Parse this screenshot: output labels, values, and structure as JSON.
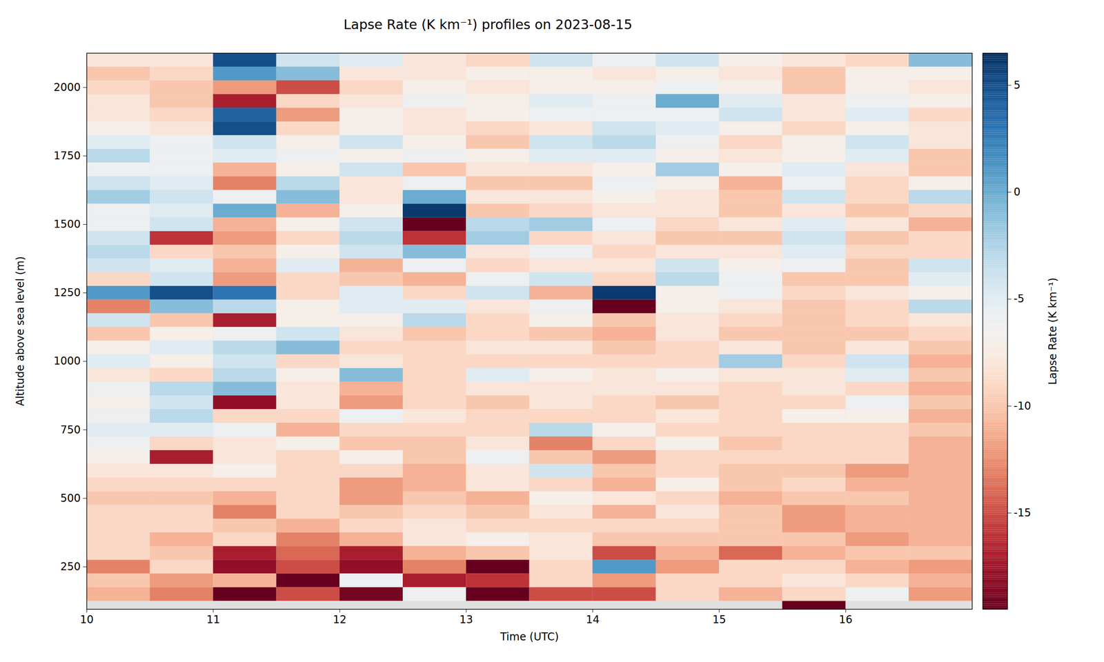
{
  "chart_data": {
    "type": "heatmap",
    "title": "Lapse Rate (K km⁻¹) profiles on 2023-08-15",
    "x_label": "Time (UTC)",
    "y_label": "Altitude above sea level (m)",
    "xlim": [
      10,
      17
    ],
    "xticks": [
      10,
      11,
      12,
      13,
      14,
      15,
      16
    ],
    "ylim": [
      95,
      2125
    ],
    "yticks": [
      250,
      500,
      750,
      1000,
      1250,
      1500,
      1750,
      2000
    ],
    "x_edges": [
      10,
      10.5,
      11,
      11.5,
      12,
      12.5,
      13,
      13.5,
      14,
      14.5,
      15,
      15.5,
      16,
      16.5,
      17
    ],
    "y_edges": [
      95,
      125,
      175,
      225,
      275,
      325,
      375,
      425,
      475,
      525,
      575,
      625,
      675,
      725,
      775,
      825,
      875,
      925,
      975,
      1025,
      1075,
      1125,
      1175,
      1225,
      1275,
      1325,
      1375,
      1425,
      1475,
      1525,
      1575,
      1625,
      1675,
      1725,
      1775,
      1825,
      1875,
      1925,
      1975,
      2025,
      2075,
      2125
    ],
    "values": [
      [
        null,
        -11,
        -10,
        -13,
        -9,
        -9,
        -9,
        -9,
        -10,
        -9,
        -8,
        -7,
        -6,
        -5,
        -6,
        -7,
        -6,
        -8,
        -5,
        -7,
        -10,
        -4,
        -13,
        1,
        -9,
        -4,
        -3,
        -4,
        -6,
        -6,
        -2,
        -4,
        -6,
        -3,
        -5,
        -7,
        -8,
        -8,
        -9,
        -10,
        -8
      ],
      [
        null,
        -13,
        -12,
        -9,
        -10,
        -11,
        -9,
        -9,
        -10,
        -9,
        -8,
        -17,
        -9,
        -5,
        -3,
        -4,
        -3,
        -9,
        -7,
        -5,
        -7,
        -10,
        -1,
        5,
        -4,
        -5,
        -9,
        -16,
        -4,
        -5,
        -4,
        -5,
        -6,
        -6,
        -6,
        -8,
        -9,
        -10,
        -10,
        -9,
        -8
      ],
      [
        null,
        -19.5,
        -11,
        -18,
        -17,
        -9,
        -10,
        -13,
        -11,
        -9,
        -7,
        -8,
        -8,
        -6,
        -9,
        -18,
        -1,
        -3,
        -4,
        -3,
        -6,
        -17,
        -3,
        3,
        -12,
        -11,
        -10,
        -12,
        -11,
        0,
        -6,
        -13,
        -11,
        -5,
        -4,
        5,
        4,
        -17,
        -12,
        1,
        5
      ],
      [
        null,
        -15,
        -19.5,
        -15,
        -14,
        -13,
        -11,
        -9,
        -9,
        -9,
        -9,
        -9,
        -7,
        -11,
        -9,
        -8,
        -8,
        -7,
        -9,
        -1,
        -4,
        -7,
        -7,
        -9,
        -9,
        -5,
        -7,
        -9,
        -7,
        -11,
        -1,
        -3,
        -7,
        -6,
        -7,
        -9,
        -12,
        -9,
        -15,
        -1,
        -4
      ],
      [
        null,
        -19,
        -6,
        -18,
        -17,
        -11,
        -9,
        -10,
        -12,
        -12,
        -9,
        -7,
        -10,
        -9,
        -6,
        -12,
        -11,
        -1,
        -8,
        -9,
        -8,
        -7,
        -5,
        -5,
        -10,
        -11,
        -4,
        -3,
        -4,
        -7,
        -8,
        -8,
        -4,
        -7,
        -4,
        -7,
        -7,
        -8,
        -9,
        -8,
        -5
      ],
      [
        null,
        -6,
        -17,
        -13,
        -11,
        -8,
        -8,
        -9,
        -10,
        -11,
        -11,
        -10,
        -10,
        -9,
        -8,
        -9,
        -9,
        -9,
        -9,
        -9,
        -10,
        -3,
        -5,
        -9,
        -11,
        -6,
        -1,
        -16,
        -19.5,
        6,
        0,
        -6,
        -10,
        -6,
        -7,
        -8,
        -8,
        -6,
        -7,
        -8,
        -8
      ],
      [
        null,
        -19.5,
        -16,
        -19.5,
        -10,
        -7,
        -9,
        -10,
        -11,
        -8,
        -8,
        -6,
        -8,
        -9,
        -9,
        -10,
        -8,
        -5,
        -9,
        -8,
        -9,
        -9,
        -8,
        -4,
        -6,
        -9,
        -8,
        -2,
        -3,
        -10,
        -8,
        -10,
        -8,
        -7,
        -10,
        -9,
        -7,
        -7,
        -8,
        -7,
        -9
      ],
      [
        null,
        -15,
        -9,
        -9,
        -8,
        -8,
        -9,
        -8,
        -7,
        -9,
        -4,
        -10,
        -13,
        -3,
        -9,
        -8,
        -8,
        -7,
        -9,
        -8,
        -10,
        -7,
        -6,
        -11,
        -4,
        -8,
        -6,
        -9,
        -2,
        -9,
        -8,
        -10,
        -8,
        -5,
        -4,
        -8,
        -6,
        -5,
        -7,
        -7,
        -4
      ],
      [
        null,
        -15,
        -12,
        1,
        -15,
        -10,
        -9,
        -11,
        -8,
        -11,
        -10,
        -12,
        -9,
        -7,
        -9,
        -9,
        -8,
        -8,
        -9,
        -10,
        -11,
        -10,
        -19.5,
        6,
        -9,
        -8,
        -9,
        -8,
        -6,
        -8,
        -7,
        -6,
        -7,
        -5,
        -3,
        -4,
        -6,
        -6,
        -7,
        -8,
        -6
      ],
      [
        null,
        -9,
        -9,
        -12,
        -11,
        -10,
        -9,
        -8,
        -9,
        -7,
        -9,
        -9,
        -7,
        -9,
        -8,
        -10,
        -8,
        -7,
        -9,
        -9,
        -8,
        -8,
        -7,
        -7,
        -3,
        -4,
        -8,
        -10,
        -9,
        -8,
        -8,
        -7,
        -2,
        -7,
        -6,
        -5,
        -6,
        0,
        -6,
        -7,
        -4
      ],
      [
        null,
        -11,
        -9,
        -9,
        -14,
        -10,
        -10,
        -10,
        -11,
        -10,
        -10,
        -9,
        -10,
        -9,
        -9,
        -9,
        -9,
        -8,
        -2,
        -8,
        -10,
        -9,
        -8,
        -6,
        -6,
        -7,
        -8,
        -10,
        -8,
        -10,
        -10,
        -11,
        -7,
        -8,
        -9,
        -7,
        -4,
        -5,
        -7,
        -8,
        -7
      ],
      [
        -19.5,
        -9,
        -8,
        -9,
        -11,
        -10,
        -12,
        -12,
        -10,
        -9,
        -10,
        -9,
        -9,
        -9,
        -7,
        -9,
        -8,
        -8,
        -9,
        -10,
        -10,
        -10,
        -10,
        -9,
        -10,
        -6,
        -5,
        -4,
        -5,
        -8,
        -4,
        -6,
        -5,
        -7,
        -7,
        -9,
        -8,
        -8,
        -10,
        -10,
        -8
      ],
      [
        null,
        -6,
        -9,
        -11,
        -10,
        -12,
        -11,
        -11,
        -10,
        -11,
        -12,
        -9,
        -9,
        -9,
        -7,
        -6,
        -9,
        -5,
        -4,
        -8,
        -10,
        -9,
        -9,
        -8,
        -10,
        -10,
        -9,
        -10,
        -8,
        -10,
        -9,
        -9,
        -8,
        -5,
        -4,
        -7,
        -5,
        -6,
        -7,
        -7,
        -9
      ],
      [
        null,
        -12,
        -11,
        -12,
        -10,
        -11,
        -11,
        -11,
        -11,
        -11,
        -11,
        -11,
        -11,
        -10,
        -11,
        -10,
        -11,
        -10,
        -11,
        -10,
        -9,
        -8,
        -3,
        -7,
        -5,
        -4,
        -9,
        -9,
        -11,
        -9,
        -3,
        -7,
        -10,
        -10,
        -8,
        -8,
        -9,
        -7,
        -8,
        -7,
        -1
      ]
    ],
    "colorbar": {
      "label": "Lapse Rate (K km⁻¹)",
      "range": [
        -19.5,
        6.5
      ],
      "ticks": [
        5,
        0,
        -5,
        -10,
        -15
      ]
    }
  }
}
